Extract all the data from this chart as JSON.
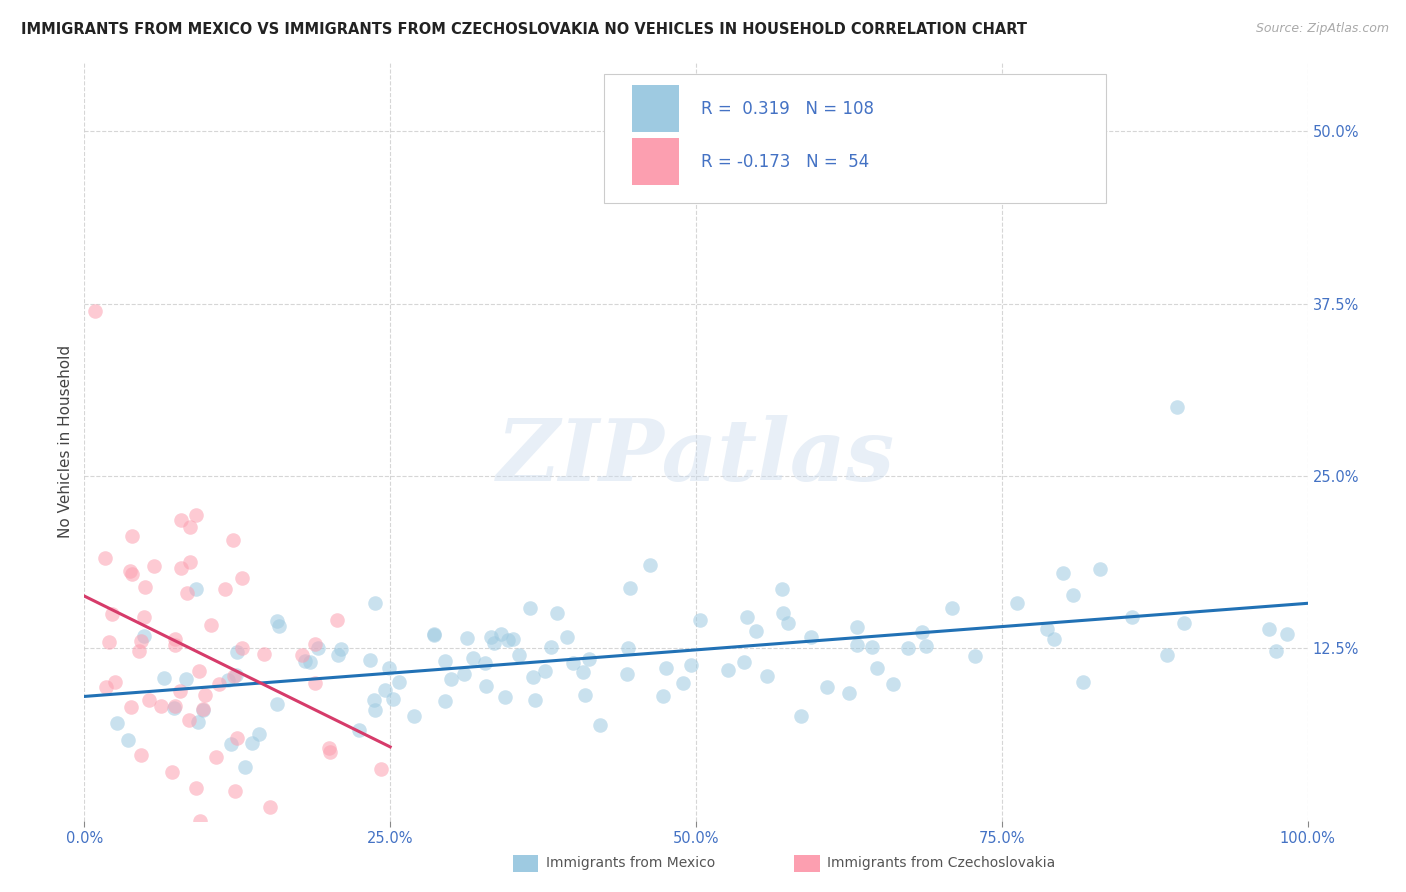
{
  "title": "IMMIGRANTS FROM MEXICO VS IMMIGRANTS FROM CZECHOSLOVAKIA NO VEHICLES IN HOUSEHOLD CORRELATION CHART",
  "source": "Source: ZipAtlas.com",
  "ylabel": "No Vehicles in Household",
  "watermark": "ZIPatlas",
  "legend_mexico": "Immigrants from Mexico",
  "legend_czech": "Immigrants from Czechoslovakia",
  "r_mexico": 0.319,
  "n_mexico": 108,
  "r_czech": -0.173,
  "n_czech": 54,
  "color_mexico": "#9ecae1",
  "color_czech": "#fc9fb0",
  "color_mexico_line": "#2171b5",
  "color_czech_line": "#d63b6a",
  "color_legend_box_mexico": "#9ecae1",
  "color_legend_box_czech": "#fc9fb0",
  "xlim": [
    0.0,
    1.0
  ],
  "ylim": [
    0.0,
    0.55
  ],
  "xtick_positions": [
    0.0,
    0.25,
    0.5,
    0.75,
    1.0
  ],
  "xticklabels": [
    "0.0%",
    "25.0%",
    "50.0%",
    "75.0%",
    "100.0%"
  ],
  "ytick_positions": [
    0.125,
    0.25,
    0.375,
    0.5
  ],
  "ytick_labels": [
    "12.5%",
    "25.0%",
    "37.5%",
    "50.0%"
  ],
  "background_color": "#ffffff",
  "grid_color": "#cccccc",
  "title_color": "#222222",
  "axis_color": "#555555",
  "xtick_color": "#4472c4",
  "ytick_color": "#4472c4",
  "legend_text_color": "#4472c4",
  "watermark_color": "#ccdcee",
  "watermark_alpha": 0.45,
  "title_fontsize": 10.5,
  "axis_label_fontsize": 11,
  "tick_fontsize": 10.5,
  "legend_fontsize": 12,
  "marker_size": 110,
  "marker_alpha": 0.55,
  "line_width": 2.2
}
